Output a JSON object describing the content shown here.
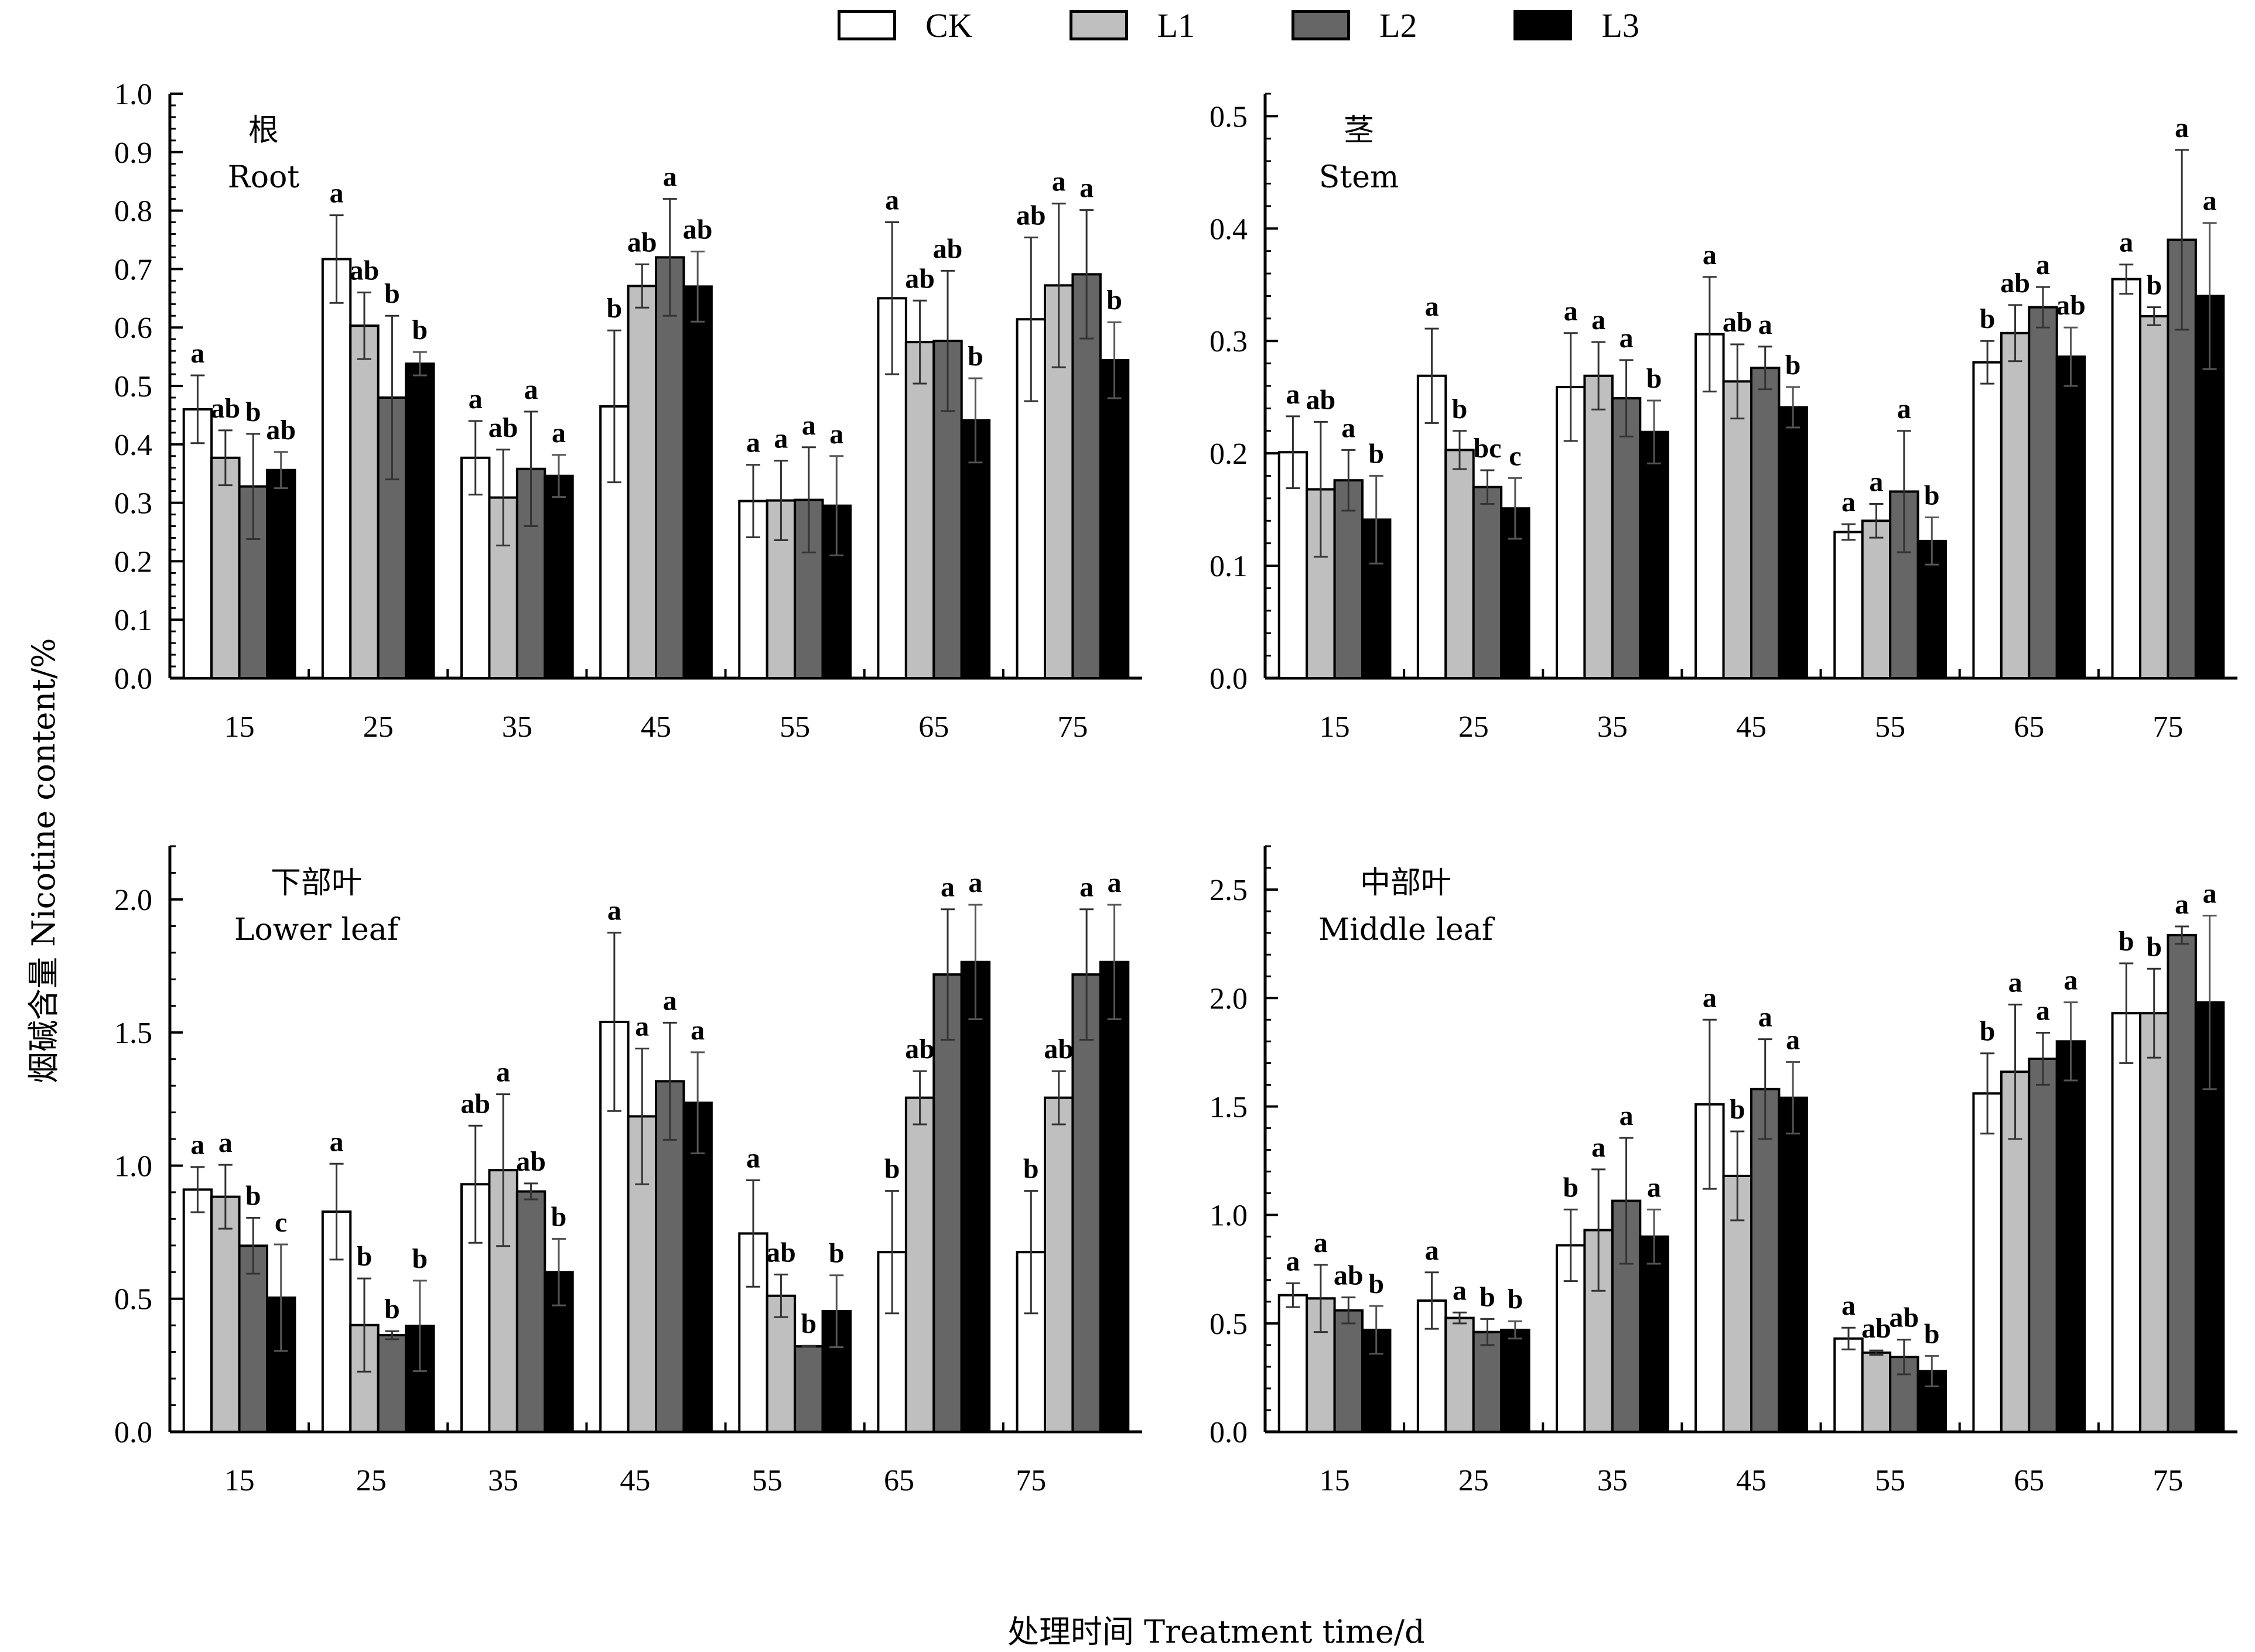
{
  "legend": [
    {
      "name": "CK",
      "color": "#ffffff"
    },
    {
      "name": "L1",
      "color": "#bfbfbf"
    },
    {
      "name": "L2",
      "color": "#666666"
    },
    {
      "name": "L3",
      "color": "#000000"
    }
  ],
  "ylabel": "烟碱含量 Nicotine content/%",
  "xlabel": "处理时间 Treatment time/d",
  "chart_data": [
    {
      "type": "bar",
      "title_cn": "根",
      "title_en": "Root",
      "position": "top-left",
      "categories": [
        "15",
        "25",
        "35",
        "45",
        "55",
        "65",
        "75"
      ],
      "ylim": [
        0,
        1.0
      ],
      "yticks": [
        "0.0",
        "0.1",
        "0.2",
        "0.3",
        "0.4",
        "0.5",
        "0.6",
        "0.7",
        "0.8",
        "0.9",
        "1.0"
      ],
      "ytick_values": [
        0,
        0.1,
        0.2,
        0.3,
        0.4,
        0.5,
        0.6,
        0.7,
        0.8,
        0.9,
        1.0
      ],
      "series": [
        {
          "name": "CK",
          "values": [
            0.46,
            0.717,
            0.377,
            0.465,
            0.303,
            0.65,
            0.614
          ],
          "errors": [
            0.058,
            0.075,
            0.063,
            0.13,
            0.062,
            0.13,
            0.14
          ],
          "labels": [
            "a",
            "a",
            "a",
            "b",
            "a",
            "a",
            "ab"
          ]
        },
        {
          "name": "L1",
          "values": [
            0.377,
            0.603,
            0.309,
            0.671,
            0.304,
            0.575,
            0.672
          ],
          "errors": [
            0.047,
            0.057,
            0.082,
            0.037,
            0.068,
            0.071,
            0.14
          ],
          "labels": [
            "ab",
            "ab",
            "ab",
            "ab",
            "a",
            "ab",
            "a"
          ]
        },
        {
          "name": "L2",
          "values": [
            0.328,
            0.48,
            0.358,
            0.72,
            0.305,
            0.577,
            0.691
          ],
          "errors": [
            0.09,
            0.14,
            0.098,
            0.1,
            0.09,
            0.12,
            0.11
          ],
          "labels": [
            "b",
            "b",
            "a",
            "a",
            "a",
            "ab",
            "a"
          ]
        },
        {
          "name": "L3",
          "values": [
            0.356,
            0.538,
            0.346,
            0.67,
            0.295,
            0.441,
            0.544
          ],
          "errors": [
            0.031,
            0.02,
            0.036,
            0.06,
            0.085,
            0.072,
            0.065
          ],
          "labels": [
            "ab",
            "b",
            "a",
            "ab",
            "a",
            "b",
            "b"
          ]
        }
      ]
    },
    {
      "type": "bar",
      "title_cn": "茎",
      "title_en": "Stem",
      "position": "top-right",
      "categories": [
        "15",
        "25",
        "35",
        "45",
        "55",
        "65",
        "75"
      ],
      "ylim": [
        0,
        0.52
      ],
      "yticks": [
        "0.0",
        "0.1",
        "0.2",
        "0.3",
        "0.4",
        "0.5"
      ],
      "ytick_values": [
        0,
        0.1,
        0.2,
        0.3,
        0.4,
        0.5
      ],
      "series": [
        {
          "name": "CK",
          "values": [
            0.201,
            0.269,
            0.259,
            0.306,
            0.13,
            0.281,
            0.355
          ],
          "errors": [
            0.032,
            0.042,
            0.048,
            0.051,
            0.007,
            0.019,
            0.013
          ],
          "labels": [
            "a",
            "a",
            "a",
            "a",
            "a",
            "b",
            "a"
          ]
        },
        {
          "name": "L1",
          "values": [
            0.168,
            0.203,
            0.269,
            0.264,
            0.14,
            0.307,
            0.322
          ],
          "errors": [
            0.06,
            0.017,
            0.03,
            0.033,
            0.015,
            0.025,
            0.008
          ],
          "labels": [
            "ab",
            "b",
            "a",
            "ab",
            "a",
            "ab",
            "b"
          ]
        },
        {
          "name": "L2",
          "values": [
            0.176,
            0.17,
            0.249,
            0.276,
            0.166,
            0.33,
            0.39
          ],
          "errors": [
            0.027,
            0.015,
            0.034,
            0.019,
            0.054,
            0.018,
            0.08
          ],
          "labels": [
            "a",
            "bc",
            "a",
            "a",
            "a",
            "a",
            "a"
          ]
        },
        {
          "name": "L3",
          "values": [
            0.141,
            0.151,
            0.219,
            0.241,
            0.122,
            0.286,
            0.34
          ],
          "errors": [
            0.039,
            0.027,
            0.028,
            0.018,
            0.021,
            0.026,
            0.065
          ],
          "labels": [
            "b",
            "c",
            "b",
            "b",
            "b",
            "ab",
            "a"
          ]
        }
      ]
    },
    {
      "type": "bar",
      "title_cn": "下部叶",
      "title_en": "Lower leaf",
      "position": "bottom-left",
      "categories": [
        "15",
        "25",
        "35",
        "45",
        "55",
        "65",
        "75"
      ],
      "ylim": [
        0,
        2.2
      ],
      "yticks": [
        "0.0",
        "0.5",
        "1.0",
        "1.5",
        "2.0"
      ],
      "ytick_values": [
        0,
        0.5,
        1.0,
        1.5,
        2.0
      ],
      "series": [
        {
          "name": "CK",
          "values": [
            0.91,
            0.827,
            0.93,
            1.54,
            0.745,
            0.675,
            0.675
          ],
          "errors": [
            0.085,
            0.18,
            0.22,
            0.335,
            0.2,
            0.23,
            0.23
          ],
          "labels": [
            "a",
            "a",
            "ab",
            "a",
            "a",
            "b",
            "b"
          ]
        },
        {
          "name": "L1",
          "values": [
            0.883,
            0.401,
            0.983,
            1.185,
            0.511,
            1.255,
            1.255
          ],
          "errors": [
            0.12,
            0.175,
            0.285,
            0.255,
            0.08,
            0.1,
            0.1
          ],
          "labels": [
            "a",
            "b",
            "a",
            "a",
            "ab",
            "ab",
            "ab"
          ]
        },
        {
          "name": "L2",
          "values": [
            0.699,
            0.363,
            0.903,
            1.317,
            0.321,
            1.718,
            1.718
          ],
          "errors": [
            0.105,
            0.015,
            0.03,
            0.22,
            0.002,
            0.245,
            0.245
          ],
          "labels": [
            "b",
            "b",
            "ab",
            "a",
            "b",
            "a",
            "a"
          ]
        },
        {
          "name": "L3",
          "values": [
            0.504,
            0.398,
            0.6,
            1.236,
            0.453,
            1.765,
            1.765
          ],
          "errors": [
            0.2,
            0.17,
            0.125,
            0.19,
            0.135,
            0.215,
            0.215
          ],
          "labels": [
            "c",
            "b",
            "b",
            "a",
            "b",
            "a",
            "a"
          ]
        }
      ],
      "note": "x tick labels in this panel are offset relative to bar groups"
    },
    {
      "type": "bar",
      "title_cn": "中部叶",
      "title_en": "Middle leaf",
      "position": "bottom-right",
      "categories": [
        "15",
        "25",
        "35",
        "45",
        "55",
        "65",
        "75"
      ],
      "ylim": [
        0,
        2.7
      ],
      "yticks": [
        "0.0",
        "0.5",
        "1.0",
        "1.5",
        "2.0",
        "2.5"
      ],
      "ytick_values": [
        0,
        0.5,
        1.0,
        1.5,
        2.0,
        2.5
      ],
      "series": [
        {
          "name": "CK",
          "values": [
            0.63,
            0.605,
            0.86,
            1.51,
            0.43,
            1.56,
            1.93
          ],
          "errors": [
            0.055,
            0.13,
            0.165,
            0.39,
            0.05,
            0.185,
            0.23
          ],
          "labels": [
            "a",
            "a",
            "b",
            "a",
            "a",
            "b",
            "b"
          ]
        },
        {
          "name": "L1",
          "values": [
            0.615,
            0.525,
            0.93,
            1.18,
            0.365,
            1.66,
            1.93
          ],
          "errors": [
            0.155,
            0.025,
            0.28,
            0.205,
            0.01,
            0.31,
            0.205
          ],
          "labels": [
            "a",
            "a",
            "a",
            "b",
            "ab",
            "a",
            "b"
          ]
        },
        {
          "name": "L2",
          "values": [
            0.56,
            0.46,
            1.065,
            1.58,
            0.345,
            1.72,
            2.29
          ],
          "errors": [
            0.06,
            0.06,
            0.29,
            0.23,
            0.08,
            0.12,
            0.04
          ],
          "labels": [
            "ab",
            "b",
            "a",
            "a",
            "ab",
            "a",
            "a"
          ]
        },
        {
          "name": "L3",
          "values": [
            0.47,
            0.47,
            0.9,
            1.54,
            0.28,
            1.8,
            1.98
          ],
          "errors": [
            0.11,
            0.04,
            0.125,
            0.165,
            0.07,
            0.18,
            0.4
          ],
          "labels": [
            "b",
            "b",
            "a",
            "a",
            "b",
            "a",
            "a"
          ]
        }
      ]
    }
  ]
}
